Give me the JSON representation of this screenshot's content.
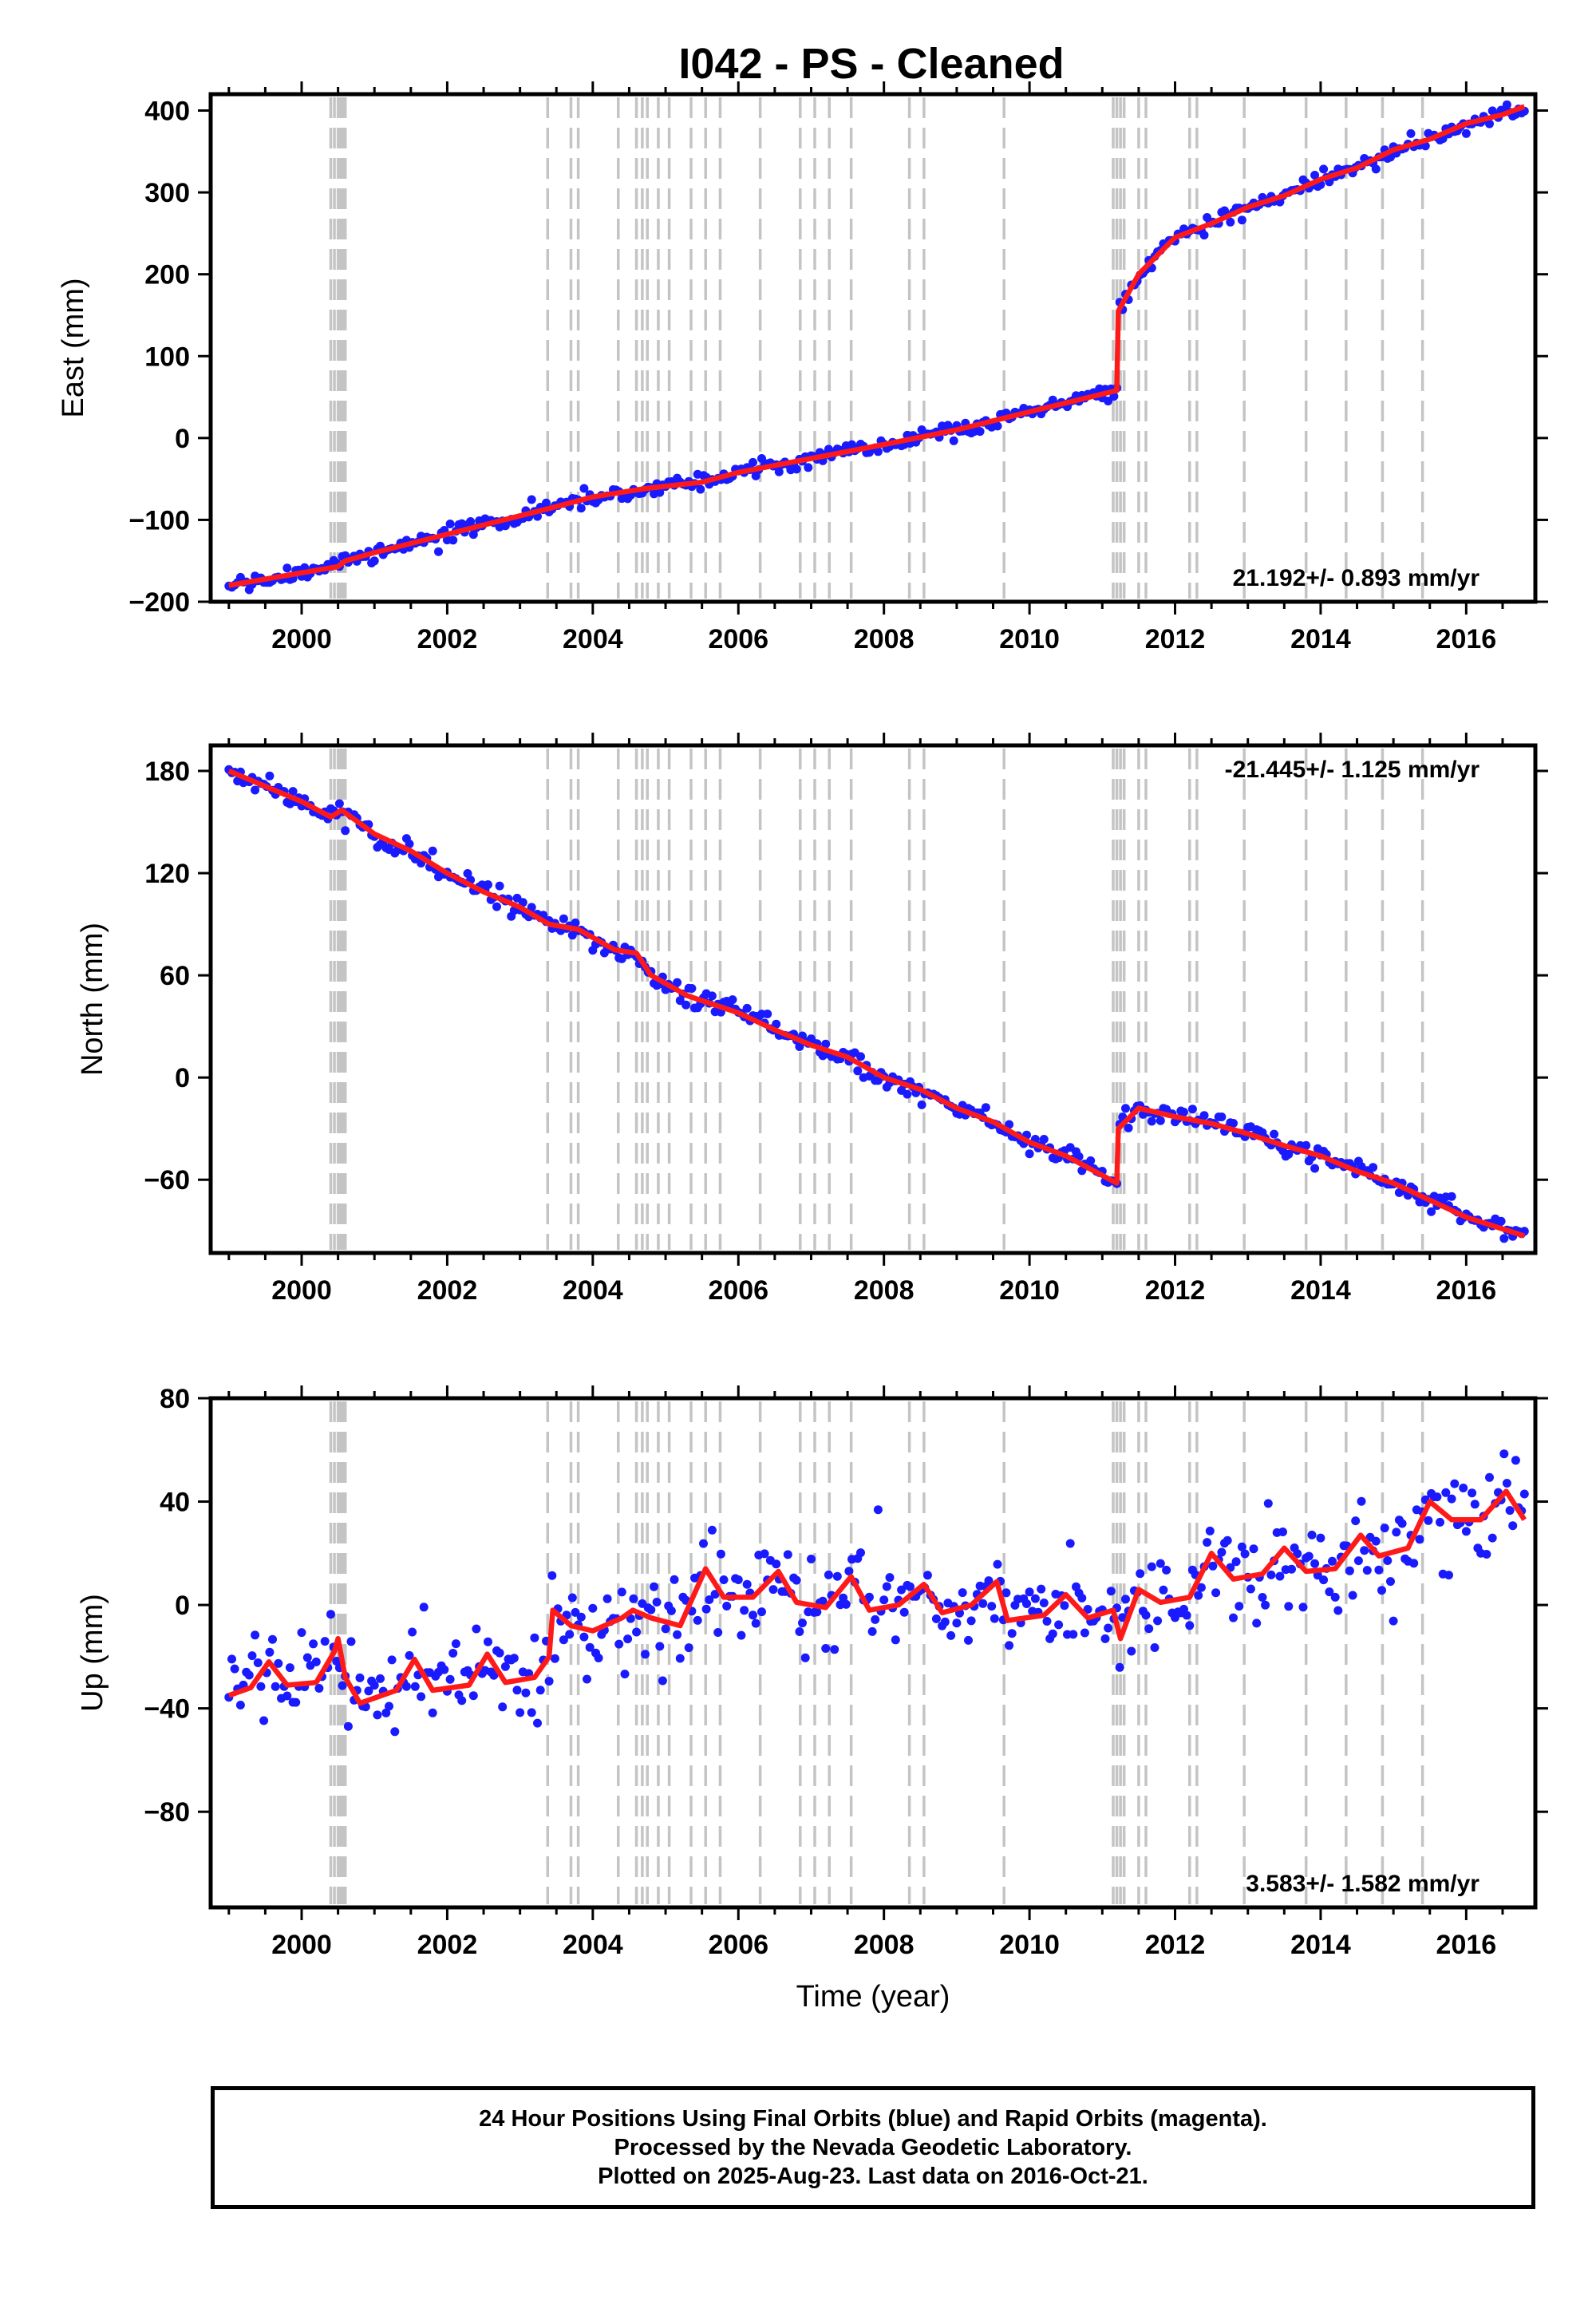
{
  "figure": {
    "title": "I042  - PS - Cleaned"
  },
  "chart_data": [
    {
      "type": "scatter",
      "ylabel": "East (mm)",
      "xlabel": "",
      "xlim": [
        1998.75,
        2016.95
      ],
      "ylim": [
        -200,
        420
      ],
      "yticks": [
        -200,
        -100,
        0,
        100,
        200,
        300,
        400
      ],
      "xticks": [
        2000,
        2002,
        2004,
        2006,
        2008,
        2010,
        2012,
        2014,
        2016
      ],
      "rate_label": "21.192+/- 0.893 mm/yr",
      "rate_position": "bottom-right",
      "series": [
        {
          "color": "#1a1aff",
          "style": "points",
          "x_range": [
            1999.0,
            2016.8
          ]
        },
        {
          "color": "#ff1a1a",
          "style": "line",
          "model": [
            [
              1999.0,
              -180
            ],
            [
              2000.5,
              -157
            ],
            [
              2000.6,
              -150
            ],
            [
              2001.0,
              -140
            ],
            [
              2003.4,
              -86
            ],
            [
              2004.0,
              -72
            ],
            [
              2004.7,
              -62
            ],
            [
              2005.5,
              -54
            ],
            [
              2006.0,
              -42
            ],
            [
              2007.0,
              -25
            ],
            [
              2008.0,
              -8
            ],
            [
              2009.0,
              10
            ],
            [
              2010.0,
              32
            ],
            [
              2011.2,
              58
            ],
            [
              2011.22,
              155
            ],
            [
              2011.5,
              200
            ],
            [
              2012.0,
              245
            ],
            [
              2012.5,
              262
            ],
            [
              2013.0,
              282
            ],
            [
              2013.5,
              296
            ],
            [
              2014.0,
              316
            ],
            [
              2014.5,
              330
            ],
            [
              2015.0,
              352
            ],
            [
              2015.5,
              365
            ],
            [
              2016.0,
              384
            ],
            [
              2016.5,
              395
            ],
            [
              2016.8,
              405
            ]
          ]
        }
      ]
    },
    {
      "type": "scatter",
      "ylabel": "North (mm)",
      "xlabel": "",
      "xlim": [
        1998.75,
        2016.95
      ],
      "ylim": [
        -103,
        195
      ],
      "yticks": [
        -60,
        0,
        60,
        120,
        180
      ],
      "xticks": [
        2000,
        2002,
        2004,
        2006,
        2008,
        2010,
        2012,
        2014,
        2016
      ],
      "rate_label": "-21.445+/- 1.125 mm/yr",
      "rate_position": "top-right",
      "series": [
        {
          "color": "#1a1aff",
          "style": "points",
          "x_range": [
            1999.0,
            2016.8
          ]
        },
        {
          "color": "#ff1a1a",
          "style": "line",
          "model": [
            [
              1999.0,
              180
            ],
            [
              1999.5,
              171
            ],
            [
              2000.0,
              162
            ],
            [
              2000.4,
              153
            ],
            [
              2000.55,
              157
            ],
            [
              2001.0,
              143
            ],
            [
              2001.5,
              133
            ],
            [
              2002.0,
              120
            ],
            [
              2002.5,
              109
            ],
            [
              2003.0,
              100
            ],
            [
              2003.4,
              90
            ],
            [
              2003.8,
              87
            ],
            [
              2004.3,
              75
            ],
            [
              2004.6,
              73
            ],
            [
              2004.8,
              60
            ],
            [
              2005.3,
              48
            ],
            [
              2006.0,
              38
            ],
            [
              2006.5,
              28
            ],
            [
              2007.0,
              19
            ],
            [
              2007.5,
              12
            ],
            [
              2008.0,
              0
            ],
            [
              2008.5,
              -7
            ],
            [
              2009.0,
              -18
            ],
            [
              2009.5,
              -26
            ],
            [
              2010.0,
              -38
            ],
            [
              2010.5,
              -46
            ],
            [
              2011.2,
              -62
            ],
            [
              2011.22,
              -30
            ],
            [
              2011.5,
              -18
            ],
            [
              2012.0,
              -23
            ],
            [
              2012.5,
              -27
            ],
            [
              2013.0,
              -33
            ],
            [
              2013.5,
              -40
            ],
            [
              2014.0,
              -46
            ],
            [
              2014.5,
              -55
            ],
            [
              2015.0,
              -62
            ],
            [
              2015.5,
              -72
            ],
            [
              2016.0,
              -82
            ],
            [
              2016.8,
              -93
            ]
          ]
        }
      ]
    },
    {
      "type": "scatter",
      "ylabel": "Up (mm)",
      "xlabel": "Time (year)",
      "xlim": [
        1998.75,
        2016.95
      ],
      "ylim": [
        -117,
        80
      ],
      "yticks": [
        -80,
        -40,
        0,
        40,
        80
      ],
      "xticks": [
        2000,
        2002,
        2004,
        2006,
        2008,
        2010,
        2012,
        2014,
        2016
      ],
      "rate_label": "3.583+/- 1.582 mm/yr",
      "rate_position": "bottom-right",
      "series": [
        {
          "color": "#1a1aff",
          "style": "points",
          "x_range": [
            1999.0,
            2016.8
          ]
        },
        {
          "color": "#ff1a1a",
          "style": "line",
          "model": [
            [
              1999.0,
              -35
            ],
            [
              1999.3,
              -32
            ],
            [
              1999.55,
              -22
            ],
            [
              1999.8,
              -31
            ],
            [
              2000.2,
              -30
            ],
            [
              2000.45,
              -18
            ],
            [
              2000.5,
              -13
            ],
            [
              2000.6,
              -28
            ],
            [
              2000.8,
              -38
            ],
            [
              2001.3,
              -33
            ],
            [
              2001.55,
              -21
            ],
            [
              2001.8,
              -33
            ],
            [
              2002.3,
              -31
            ],
            [
              2002.55,
              -19
            ],
            [
              2002.8,
              -30
            ],
            [
              2003.2,
              -28
            ],
            [
              2003.4,
              -20
            ],
            [
              2003.45,
              -2
            ],
            [
              2003.7,
              -8
            ],
            [
              2004.0,
              -10
            ],
            [
              2004.4,
              -5
            ],
            [
              2004.55,
              -2
            ],
            [
              2004.8,
              -5
            ],
            [
              2005.2,
              -8
            ],
            [
              2005.55,
              14
            ],
            [
              2005.8,
              3
            ],
            [
              2006.2,
              3
            ],
            [
              2006.55,
              13
            ],
            [
              2006.8,
              1
            ],
            [
              2007.2,
              -1
            ],
            [
              2007.55,
              11
            ],
            [
              2007.8,
              -2
            ],
            [
              2008.2,
              0
            ],
            [
              2008.55,
              8
            ],
            [
              2008.8,
              -3
            ],
            [
              2009.2,
              0
            ],
            [
              2009.55,
              9
            ],
            [
              2009.7,
              -6
            ],
            [
              2010.2,
              -4
            ],
            [
              2010.5,
              4
            ],
            [
              2010.8,
              -5
            ],
            [
              2011.15,
              -2
            ],
            [
              2011.25,
              -13
            ],
            [
              2011.5,
              6
            ],
            [
              2011.8,
              1
            ],
            [
              2012.2,
              3
            ],
            [
              2012.5,
              20
            ],
            [
              2012.8,
              10
            ],
            [
              2013.2,
              12
            ],
            [
              2013.5,
              22
            ],
            [
              2013.8,
              13
            ],
            [
              2014.2,
              14
            ],
            [
              2014.55,
              27
            ],
            [
              2014.8,
              19
            ],
            [
              2015.2,
              22
            ],
            [
              2015.5,
              40
            ],
            [
              2015.8,
              33
            ],
            [
              2016.2,
              33
            ],
            [
              2016.55,
              44
            ],
            [
              2016.8,
              33
            ]
          ]
        }
      ]
    }
  ],
  "antenna_changes": [
    2000.4,
    2000.45,
    2000.5,
    2000.52,
    2000.55,
    2000.58,
    2000.6,
    2003.38,
    2003.7,
    2003.8,
    2004.35,
    2004.6,
    2004.68,
    2004.75,
    2004.9,
    2005.05,
    2005.35,
    2005.55,
    2005.75,
    2006.3,
    2006.85,
    2007.05,
    2007.25,
    2007.55,
    2008.35,
    2008.55,
    2009.65,
    2011.15,
    2011.2,
    2011.25,
    2011.3,
    2011.5,
    2011.6,
    2012.2,
    2012.3,
    2012.95,
    2013.8,
    2014.35,
    2014.85,
    2015.4
  ],
  "footer": {
    "line1": "24 Hour Positions Using Final Orbits (blue) and Rapid Orbits (magenta).",
    "line2": "Processed by the Nevada Geodetic Laboratory.",
    "line3": "Plotted on 2025-Aug-23. Last data on 2016-Oct-21."
  }
}
